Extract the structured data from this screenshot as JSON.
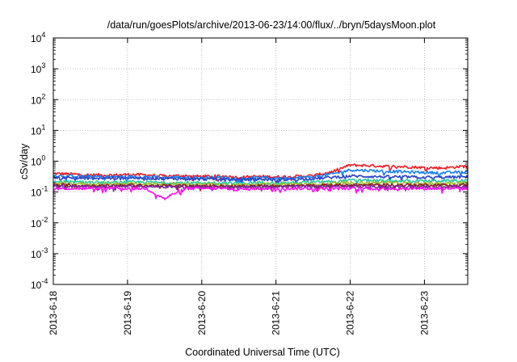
{
  "chart_data": {
    "type": "line",
    "title": "/data/run/goesPlots/archive/2013-06-23/14:00/flux/../bryn/5daysMoon.plot",
    "xlabel": "Coordinated Universal Time (UTC)",
    "ylabel": "cSv/day",
    "yscale": "log",
    "ylim": [
      0.0001,
      10000
    ],
    "xlim": [
      "2013-06-18",
      "2013-06-23 14:00"
    ],
    "x_tick_labels": [
      "2013-6-18",
      "2013-6-19",
      "2013-6-20",
      "2013-6-21",
      "2013-6-22",
      "2013-6-23"
    ],
    "y_ticks": [
      {
        "base": "10",
        "exp": "-4"
      },
      {
        "base": "10",
        "exp": "-3"
      },
      {
        "base": "10",
        "exp": "-2"
      },
      {
        "base": "10",
        "exp": "-1"
      },
      {
        "base": "10",
        "exp": "0"
      },
      {
        "base": "10",
        "exp": "1"
      },
      {
        "base": "10",
        "exp": "2"
      },
      {
        "base": "10",
        "exp": "3"
      },
      {
        "base": "10",
        "exp": "4"
      }
    ],
    "grid": true,
    "legend": "none",
    "series": [
      {
        "color": "#ee1c25",
        "values": [
          [
            "2013-06-18 00:00",
            0.4
          ],
          [
            "2013-06-18 06:00",
            0.38
          ],
          [
            "2013-06-18 12:00",
            0.36
          ],
          [
            "2013-06-18 18:00",
            0.35
          ],
          [
            "2013-06-19 00:00",
            0.37
          ],
          [
            "2013-06-19 06:00",
            0.36
          ],
          [
            "2013-06-19 12:00",
            0.33
          ],
          [
            "2013-06-19 18:00",
            0.34
          ],
          [
            "2013-06-20 00:00",
            0.32
          ],
          [
            "2013-06-20 06:00",
            0.33
          ],
          [
            "2013-06-20 12:00",
            0.3
          ],
          [
            "2013-06-20 18:00",
            0.32
          ],
          [
            "2013-06-21 00:00",
            0.31
          ],
          [
            "2013-06-21 06:00",
            0.32
          ],
          [
            "2013-06-21 12:00",
            0.34
          ],
          [
            "2013-06-21 18:00",
            0.45
          ],
          [
            "2013-06-22 00:00",
            0.75
          ],
          [
            "2013-06-22 06:00",
            0.72
          ],
          [
            "2013-06-22 12:00",
            0.68
          ],
          [
            "2013-06-22 18:00",
            0.66
          ],
          [
            "2013-06-23 00:00",
            0.62
          ],
          [
            "2013-06-23 06:00",
            0.6
          ],
          [
            "2013-06-23 14:00",
            0.7
          ]
        ]
      },
      {
        "color": "#1a7ff0",
        "values": [
          [
            "2013-06-18 00:00",
            0.34
          ],
          [
            "2013-06-18 06:00",
            0.33
          ],
          [
            "2013-06-18 12:00",
            0.32
          ],
          [
            "2013-06-18 18:00",
            0.31
          ],
          [
            "2013-06-19 00:00",
            0.32
          ],
          [
            "2013-06-19 06:00",
            0.31
          ],
          [
            "2013-06-19 12:00",
            0.3
          ],
          [
            "2013-06-19 18:00",
            0.3
          ],
          [
            "2013-06-20 00:00",
            0.29
          ],
          [
            "2013-06-20 06:00",
            0.3
          ],
          [
            "2013-06-20 12:00",
            0.28
          ],
          [
            "2013-06-20 18:00",
            0.29
          ],
          [
            "2013-06-21 00:00",
            0.28
          ],
          [
            "2013-06-21 06:00",
            0.29
          ],
          [
            "2013-06-21 12:00",
            0.31
          ],
          [
            "2013-06-21 18:00",
            0.38
          ],
          [
            "2013-06-22 00:00",
            0.52
          ],
          [
            "2013-06-22 06:00",
            0.5
          ],
          [
            "2013-06-22 12:00",
            0.47
          ],
          [
            "2013-06-22 18:00",
            0.45
          ],
          [
            "2013-06-23 00:00",
            0.43
          ],
          [
            "2013-06-23 06:00",
            0.42
          ],
          [
            "2013-06-23 14:00",
            0.45
          ]
        ]
      },
      {
        "color": "#2b44c8",
        "values": [
          [
            "2013-06-18 00:00",
            0.3
          ],
          [
            "2013-06-18 06:00",
            0.29
          ],
          [
            "2013-06-18 12:00",
            0.28
          ],
          [
            "2013-06-18 18:00",
            0.28
          ],
          [
            "2013-06-19 00:00",
            0.29
          ],
          [
            "2013-06-19 06:00",
            0.28
          ],
          [
            "2013-06-19 12:00",
            0.27
          ],
          [
            "2013-06-19 18:00",
            0.27
          ],
          [
            "2013-06-20 00:00",
            0.26
          ],
          [
            "2013-06-20 06:00",
            0.27
          ],
          [
            "2013-06-20 12:00",
            0.25
          ],
          [
            "2013-06-20 18:00",
            0.26
          ],
          [
            "2013-06-21 00:00",
            0.25
          ],
          [
            "2013-06-21 06:00",
            0.26
          ],
          [
            "2013-06-21 12:00",
            0.27
          ],
          [
            "2013-06-21 18:00",
            0.3
          ],
          [
            "2013-06-22 00:00",
            0.33
          ],
          [
            "2013-06-22 06:00",
            0.32
          ],
          [
            "2013-06-22 12:00",
            0.31
          ],
          [
            "2013-06-22 18:00",
            0.31
          ],
          [
            "2013-06-23 00:00",
            0.3
          ],
          [
            "2013-06-23 06:00",
            0.3
          ],
          [
            "2013-06-23 14:00",
            0.31
          ]
        ]
      },
      {
        "color": "#27c9a0",
        "values": [
          [
            "2013-06-18 00:00",
            0.22
          ],
          [
            "2013-06-18 06:00",
            0.21
          ],
          [
            "2013-06-18 12:00",
            0.21
          ],
          [
            "2013-06-18 18:00",
            0.2
          ],
          [
            "2013-06-19 00:00",
            0.21
          ],
          [
            "2013-06-19 06:00",
            0.21
          ],
          [
            "2013-06-19 12:00",
            0.2
          ],
          [
            "2013-06-19 18:00",
            0.2
          ],
          [
            "2013-06-20 00:00",
            0.2
          ],
          [
            "2013-06-20 06:00",
            0.2
          ],
          [
            "2013-06-20 12:00",
            0.19
          ],
          [
            "2013-06-20 18:00",
            0.2
          ],
          [
            "2013-06-21 00:00",
            0.2
          ],
          [
            "2013-06-21 06:00",
            0.2
          ],
          [
            "2013-06-21 12:00",
            0.21
          ],
          [
            "2013-06-21 18:00",
            0.22
          ],
          [
            "2013-06-22 00:00",
            0.24
          ],
          [
            "2013-06-22 06:00",
            0.24
          ],
          [
            "2013-06-22 12:00",
            0.23
          ],
          [
            "2013-06-22 18:00",
            0.23
          ],
          [
            "2013-06-23 00:00",
            0.23
          ],
          [
            "2013-06-23 06:00",
            0.23
          ],
          [
            "2013-06-23 14:00",
            0.24
          ]
        ]
      },
      {
        "color": "#9dbd2e",
        "values": [
          [
            "2013-06-18 00:00",
            0.19
          ],
          [
            "2013-06-18 06:00",
            0.19
          ],
          [
            "2013-06-18 12:00",
            0.18
          ],
          [
            "2013-06-18 18:00",
            0.18
          ],
          [
            "2013-06-19 00:00",
            0.19
          ],
          [
            "2013-06-19 06:00",
            0.18
          ],
          [
            "2013-06-19 12:00",
            0.18
          ],
          [
            "2013-06-19 18:00",
            0.18
          ],
          [
            "2013-06-20 00:00",
            0.18
          ],
          [
            "2013-06-20 06:00",
            0.18
          ],
          [
            "2013-06-20 12:00",
            0.17
          ],
          [
            "2013-06-20 18:00",
            0.18
          ],
          [
            "2013-06-21 00:00",
            0.18
          ],
          [
            "2013-06-21 06:00",
            0.18
          ],
          [
            "2013-06-21 12:00",
            0.18
          ],
          [
            "2013-06-21 18:00",
            0.19
          ],
          [
            "2013-06-22 00:00",
            0.2
          ],
          [
            "2013-06-22 06:00",
            0.2
          ],
          [
            "2013-06-22 12:00",
            0.2
          ],
          [
            "2013-06-22 18:00",
            0.19
          ],
          [
            "2013-06-23 00:00",
            0.19
          ],
          [
            "2013-06-23 06:00",
            0.19
          ],
          [
            "2013-06-23 14:00",
            0.2
          ]
        ]
      },
      {
        "color": "#8a2020",
        "values": [
          [
            "2013-06-18 00:00",
            0.17
          ],
          [
            "2013-06-18 06:00",
            0.17
          ],
          [
            "2013-06-18 12:00",
            0.16
          ],
          [
            "2013-06-18 18:00",
            0.16
          ],
          [
            "2013-06-19 00:00",
            0.17
          ],
          [
            "2013-06-19 06:00",
            0.16
          ],
          [
            "2013-06-19 12:00",
            0.16
          ],
          [
            "2013-06-19 18:00",
            0.16
          ],
          [
            "2013-06-20 00:00",
            0.16
          ],
          [
            "2013-06-20 06:00",
            0.16
          ],
          [
            "2013-06-20 12:00",
            0.15
          ],
          [
            "2013-06-20 18:00",
            0.16
          ],
          [
            "2013-06-21 00:00",
            0.16
          ],
          [
            "2013-06-21 06:00",
            0.16
          ],
          [
            "2013-06-21 12:00",
            0.16
          ],
          [
            "2013-06-21 18:00",
            0.17
          ],
          [
            "2013-06-22 00:00",
            0.17
          ],
          [
            "2013-06-22 06:00",
            0.17
          ],
          [
            "2013-06-22 12:00",
            0.17
          ],
          [
            "2013-06-22 18:00",
            0.17
          ],
          [
            "2013-06-23 00:00",
            0.17
          ],
          [
            "2013-06-23 06:00",
            0.17
          ],
          [
            "2013-06-23 14:00",
            0.17
          ]
        ]
      },
      {
        "color": "#7a2a9a",
        "values": [
          [
            "2013-06-18 00:00",
            0.16
          ],
          [
            "2013-06-18 06:00",
            0.15
          ],
          [
            "2013-06-18 12:00",
            0.15
          ],
          [
            "2013-06-18 18:00",
            0.15
          ],
          [
            "2013-06-19 00:00",
            0.15
          ],
          [
            "2013-06-19 06:00",
            0.15
          ],
          [
            "2013-06-19 12:00",
            0.15
          ],
          [
            "2013-06-19 18:00",
            0.15
          ],
          [
            "2013-06-20 00:00",
            0.15
          ],
          [
            "2013-06-20 06:00",
            0.15
          ],
          [
            "2013-06-20 12:00",
            0.14
          ],
          [
            "2013-06-20 18:00",
            0.15
          ],
          [
            "2013-06-21 00:00",
            0.15
          ],
          [
            "2013-06-21 06:00",
            0.15
          ],
          [
            "2013-06-21 12:00",
            0.15
          ],
          [
            "2013-06-21 18:00",
            0.15
          ],
          [
            "2013-06-22 00:00",
            0.15
          ],
          [
            "2013-06-22 06:00",
            0.15
          ],
          [
            "2013-06-22 12:00",
            0.15
          ],
          [
            "2013-06-22 18:00",
            0.15
          ],
          [
            "2013-06-23 00:00",
            0.15
          ],
          [
            "2013-06-23 06:00",
            0.15
          ],
          [
            "2013-06-23 14:00",
            0.15
          ]
        ]
      },
      {
        "color": "#ff10ee",
        "values": [
          [
            "2013-06-18 00:00",
            0.13
          ],
          [
            "2013-06-18 06:00",
            0.13
          ],
          [
            "2013-06-18 12:00",
            0.13
          ],
          [
            "2013-06-18 18:00",
            0.13
          ],
          [
            "2013-06-19 00:00",
            0.13
          ],
          [
            "2013-06-19 06:00",
            0.13
          ],
          [
            "2013-06-19 12:00",
            0.06
          ],
          [
            "2013-06-19 18:00",
            0.13
          ],
          [
            "2013-06-20 00:00",
            0.13
          ],
          [
            "2013-06-20 06:00",
            0.13
          ],
          [
            "2013-06-20 12:00",
            0.12
          ],
          [
            "2013-06-20 18:00",
            0.13
          ],
          [
            "2013-06-21 00:00",
            0.13
          ],
          [
            "2013-06-21 06:00",
            0.13
          ],
          [
            "2013-06-21 12:00",
            0.13
          ],
          [
            "2013-06-21 18:00",
            0.13
          ],
          [
            "2013-06-22 00:00",
            0.13
          ],
          [
            "2013-06-22 06:00",
            0.13
          ],
          [
            "2013-06-22 12:00",
            0.13
          ],
          [
            "2013-06-22 18:00",
            0.13
          ],
          [
            "2013-06-23 00:00",
            0.13
          ],
          [
            "2013-06-23 06:00",
            0.13
          ],
          [
            "2013-06-23 14:00",
            0.13
          ]
        ]
      }
    ]
  }
}
